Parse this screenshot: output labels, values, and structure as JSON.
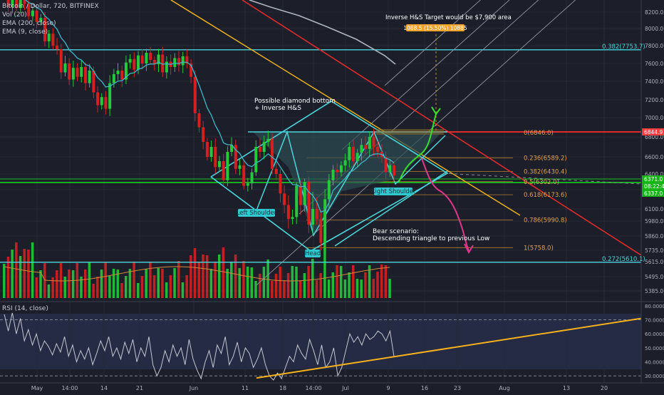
{
  "header": {
    "title": "Bitcoin / Dollar, 720, BITFINEX",
    "indicators": [
      "Vol (20)",
      "EMA (200, close)",
      "EMA (9, close)"
    ]
  },
  "rsi_panel": {
    "label": "RSI (14, close)"
  },
  "colors": {
    "background": "#1c1f2a",
    "candle_up": "#26c93a",
    "candle_down": "#d62020",
    "cyan": "#4ad6dc",
    "red_line": "#e02b2b",
    "yellow_line": "#f2b61c",
    "fib_line": "#c98a2e",
    "green_line": "#19c21f",
    "ema_fast": "#3db8c8",
    "ema_slow": "#aeb5c2",
    "rsi_line": "#c6c8cf",
    "rsi_trend": "#f7b21b",
    "bull_arrow": "#35e02b",
    "bear_arrow": "#e0358a",
    "tag_red": "#ff3b3b",
    "tag_green": "#15b515"
  },
  "chart_data": [
    {
      "type": "candlestick",
      "title": "Bitcoin / Dollar, 720, BITFINEX",
      "x_tick_labels": [
        "May",
        "14:00",
        "14",
        "21",
        "Jun",
        "11",
        "18",
        "14:00",
        "Jul",
        "9",
        "16",
        "23",
        "Aug",
        "13",
        "20"
      ],
      "y_ticks": [
        8200,
        8000,
        7800,
        7600,
        7400,
        7200,
        7000,
        6800,
        6600,
        6400,
        6200,
        6100,
        5980,
        5860,
        5735,
        5615,
        5495,
        5385
      ],
      "y_tick_labels": [
        "8200.0",
        "8000.0",
        "7800.0",
        "7600.0",
        "7400.0",
        "7200.0",
        "7000.0",
        "6800.0",
        "6600.0",
        "6400.0",
        "6200.0",
        "6100.0",
        "5980.0",
        "5860.0",
        "5735.0",
        "5615.0",
        "5495.0",
        "5385.0"
      ],
      "close_path": [
        8420,
        8260,
        8350,
        8250,
        8450,
        8300,
        8150,
        8220,
        8080,
        8130,
        7850,
        7940,
        7800,
        7760,
        7500,
        7600,
        7420,
        7550,
        7450,
        7560,
        7380,
        7520,
        7280,
        7140,
        7230,
        7100,
        7380,
        7480,
        7520,
        7420,
        7610,
        7650,
        7530,
        7690,
        7600,
        7720,
        7640,
        7590,
        7700,
        7500,
        7620,
        7560,
        7660,
        7580,
        7680,
        7600,
        7450,
        7050,
        6900,
        6750,
        6600,
        6700,
        6480,
        6550,
        6320,
        6650,
        6720,
        6460,
        6500,
        6250,
        6280,
        6420,
        6700,
        6650,
        6750,
        6780,
        6460,
        6400,
        6180,
        6120,
        6000,
        6020,
        6250,
        6120,
        6300,
        5950,
        6100,
        6000,
        5800,
        6150,
        6320,
        6450,
        6420,
        6500,
        6560,
        6700,
        6550,
        6640,
        6720,
        6680,
        6800,
        6700,
        6650,
        6600,
        6420,
        6500,
        6380
      ],
      "volume_bars": 96,
      "annotations": [
        "Possible diamond bottom\n+ Inverse H&S",
        "Left Shoulder",
        "Head",
        "Right Shoulder",
        "Inverse H&S Target would be $7,900 area",
        "1088.5 (15.50%) 10885",
        "Bear scenario:\nDescending triangle to previous Low"
      ],
      "fib_levels": [
        {
          "label": "0(6846.0)",
          "value": 6846.0
        },
        {
          "label": "0.236(6589.2)",
          "value": 6589.2
        },
        {
          "label": "0.382(6430.4)",
          "value": 6430.4
        },
        {
          "label": "0.5(6302.0)",
          "value": 6302.0
        },
        {
          "label": "0.618(6173.6)",
          "value": 6173.6
        },
        {
          "label": "0.786(5990.8)",
          "value": 5990.8
        },
        {
          "label": "1(5758.0)",
          "value": 5758.0
        }
      ],
      "fib_outer": [
        {
          "label": "0.382(7753.7)",
          "value": 7753.7
        },
        {
          "label": "0.272(5610.1)",
          "value": 5610.1
        }
      ],
      "price_tags": [
        {
          "text": "6844.9",
          "color": "red"
        },
        {
          "text": "6371.0",
          "color": "green"
        },
        {
          "text": "08:22:43",
          "color": "green"
        },
        {
          "text": "6337.0",
          "color": "green"
        }
      ]
    },
    {
      "type": "line",
      "title": "RSI (14, close)",
      "y_ticks": [
        80,
        70,
        60,
        50,
        40,
        30
      ],
      "y_tick_labels": [
        "80.0000",
        "70.0000",
        "60.0000",
        "50.0000",
        "40.0000",
        "30.0000"
      ],
      "ylim": [
        25,
        82
      ],
      "values": [
        74,
        62,
        75,
        60,
        71,
        55,
        63,
        52,
        60,
        48,
        55,
        51,
        45,
        53,
        47,
        58,
        44,
        52,
        40,
        48,
        42,
        50,
        38,
        46,
        55,
        48,
        58,
        44,
        50,
        42,
        54,
        46,
        56,
        40,
        50,
        44,
        58,
        38,
        30,
        36,
        48,
        40,
        52,
        44,
        50,
        38,
        56,
        42,
        34,
        28,
        40,
        48,
        36,
        52,
        46,
        58,
        38,
        44,
        54,
        40,
        50,
        46,
        36,
        42,
        50,
        38,
        30,
        27,
        32,
        28,
        36,
        44,
        40,
        52,
        46,
        42,
        56,
        48,
        38,
        52,
        36,
        40,
        50,
        30,
        36,
        48,
        60,
        54,
        58,
        52,
        60,
        56,
        58,
        62,
        60,
        55,
        62,
        44
      ]
    }
  ]
}
